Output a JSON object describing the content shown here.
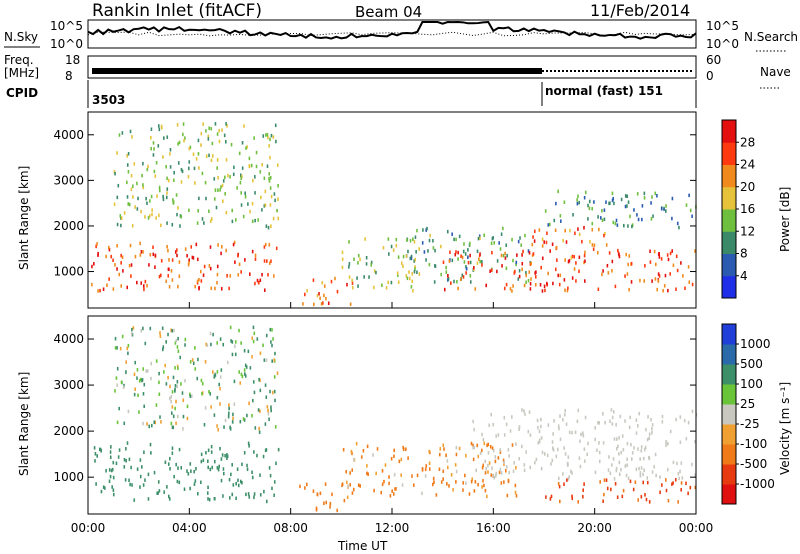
{
  "header": {
    "station": "Rankin Inlet (fitACF)",
    "beam": "Beam 04",
    "date": "11/Feb/2014"
  },
  "nsky_panel": {
    "left_label": "N.Sky",
    "left_ticks": [
      "10^5",
      "10^0"
    ],
    "right_ticks": [
      "10^5",
      "10^0"
    ],
    "right_label": "N.Search"
  },
  "freq_panel": {
    "label_line1": "Freq.",
    "label_line2": "[MHz]",
    "left_ticks": [
      "18",
      "8"
    ],
    "right_ticks": [
      "60",
      "0"
    ],
    "right_label": "Nave"
  },
  "cpid_panel": {
    "label": "CPID",
    "segments": [
      {
        "text": "3503",
        "start_hour": 0
      },
      {
        "text": "normal (fast) 151",
        "start_hour": 18
      }
    ]
  },
  "x_axis": {
    "title": "Time UT",
    "ticks": [
      "00:00",
      "04:00",
      "08:00",
      "12:00",
      "16:00",
      "20:00",
      "00:00"
    ],
    "range_hours": [
      0,
      24
    ]
  },
  "power_panel": {
    "ylabel": "Slant Range [km]",
    "yticks": [
      "1000",
      "2000",
      "3000",
      "4000"
    ],
    "colorbar_label": "Power [dB]",
    "colorbar_ticks": [
      "4",
      "8",
      "12",
      "16",
      "20",
      "24",
      "28"
    ],
    "colors": [
      "#1f2fe8",
      "#2a5bb0",
      "#3a8a6a",
      "#6fbf3f",
      "#e6c23a",
      "#f08a1c",
      "#ff3a10",
      "#e41010"
    ]
  },
  "velocity_panel": {
    "ylabel": "Slant Range [km]",
    "yticks": [
      "1000",
      "2000",
      "3000",
      "4000"
    ],
    "colorbar_label": "Velocity [m s⁻¹]",
    "colorbar_ticks": [
      "1000",
      "500",
      "100",
      "25",
      "-25",
      "-100",
      "-500",
      "-1000"
    ],
    "colors": [
      "#1f3fd8",
      "#2a6aa8",
      "#3d8f6a",
      "#69c43a",
      "#c8c8c0",
      "#f0a030",
      "#ef7a18",
      "#e83a10",
      "#e01010"
    ]
  },
  "chart_data": [
    {
      "type": "heatmap",
      "title": "Power",
      "xlabel": "Time UT",
      "ylabel": "Slant Range [km]",
      "xlim": [
        0,
        24
      ],
      "ylim": [
        200,
        4500
      ],
      "colorbar": {
        "label": "Power [dB]",
        "ticks": [
          4,
          8,
          12,
          16,
          20,
          24,
          28
        ]
      },
      "regions": [
        {
          "t0": 0.1,
          "t1": 7.5,
          "r0": 600,
          "r1": 1700,
          "value": 26
        },
        {
          "t0": 8.3,
          "t1": 10.5,
          "r0": 300,
          "r1": 900,
          "value": 24
        },
        {
          "t0": 10.0,
          "t1": 13.0,
          "r0": 600,
          "r1": 1800,
          "value": 14
        },
        {
          "t0": 12.5,
          "t1": 17.5,
          "r0": 800,
          "r1": 2000,
          "value": 12
        },
        {
          "t0": 14.0,
          "t1": 24.0,
          "r0": 600,
          "r1": 1500,
          "value": 26
        },
        {
          "t0": 17.5,
          "t1": 20.5,
          "r0": 1200,
          "r1": 2000,
          "value": 24
        },
        {
          "t0": 18.0,
          "t1": 24.0,
          "r0": 2000,
          "r1": 2800,
          "value": 10
        },
        {
          "t0": 1.0,
          "t1": 7.5,
          "r0": 2000,
          "r1": 4300,
          "value": 14
        }
      ]
    },
    {
      "type": "heatmap",
      "title": "Velocity",
      "xlabel": "Time UT",
      "ylabel": "Slant Range [km]",
      "xlim": [
        0,
        24
      ],
      "ylim": [
        200,
        4500
      ],
      "colorbar": {
        "label": "Velocity [m s-1]",
        "ticks": [
          1000,
          500,
          100,
          25,
          -25,
          -100,
          -500,
          -1000
        ]
      },
      "regions": [
        {
          "t0": 0.1,
          "t1": 7.5,
          "r0": 500,
          "r1": 1800,
          "value": 300
        },
        {
          "t0": 8.3,
          "t1": 10.5,
          "r0": 300,
          "r1": 900,
          "value": -300
        },
        {
          "t0": 10.0,
          "t1": 17.0,
          "r0": 600,
          "r1": 1800,
          "value": -200
        },
        {
          "t0": 15.0,
          "t1": 24.0,
          "r0": 1000,
          "r1": 2500,
          "value": 0
        },
        {
          "t0": 18.0,
          "t1": 24.0,
          "r0": 500,
          "r1": 1000,
          "value": -600
        },
        {
          "t0": 1.0,
          "t1": 7.5,
          "r0": 2000,
          "r1": 4300,
          "value": 100
        }
      ]
    }
  ]
}
